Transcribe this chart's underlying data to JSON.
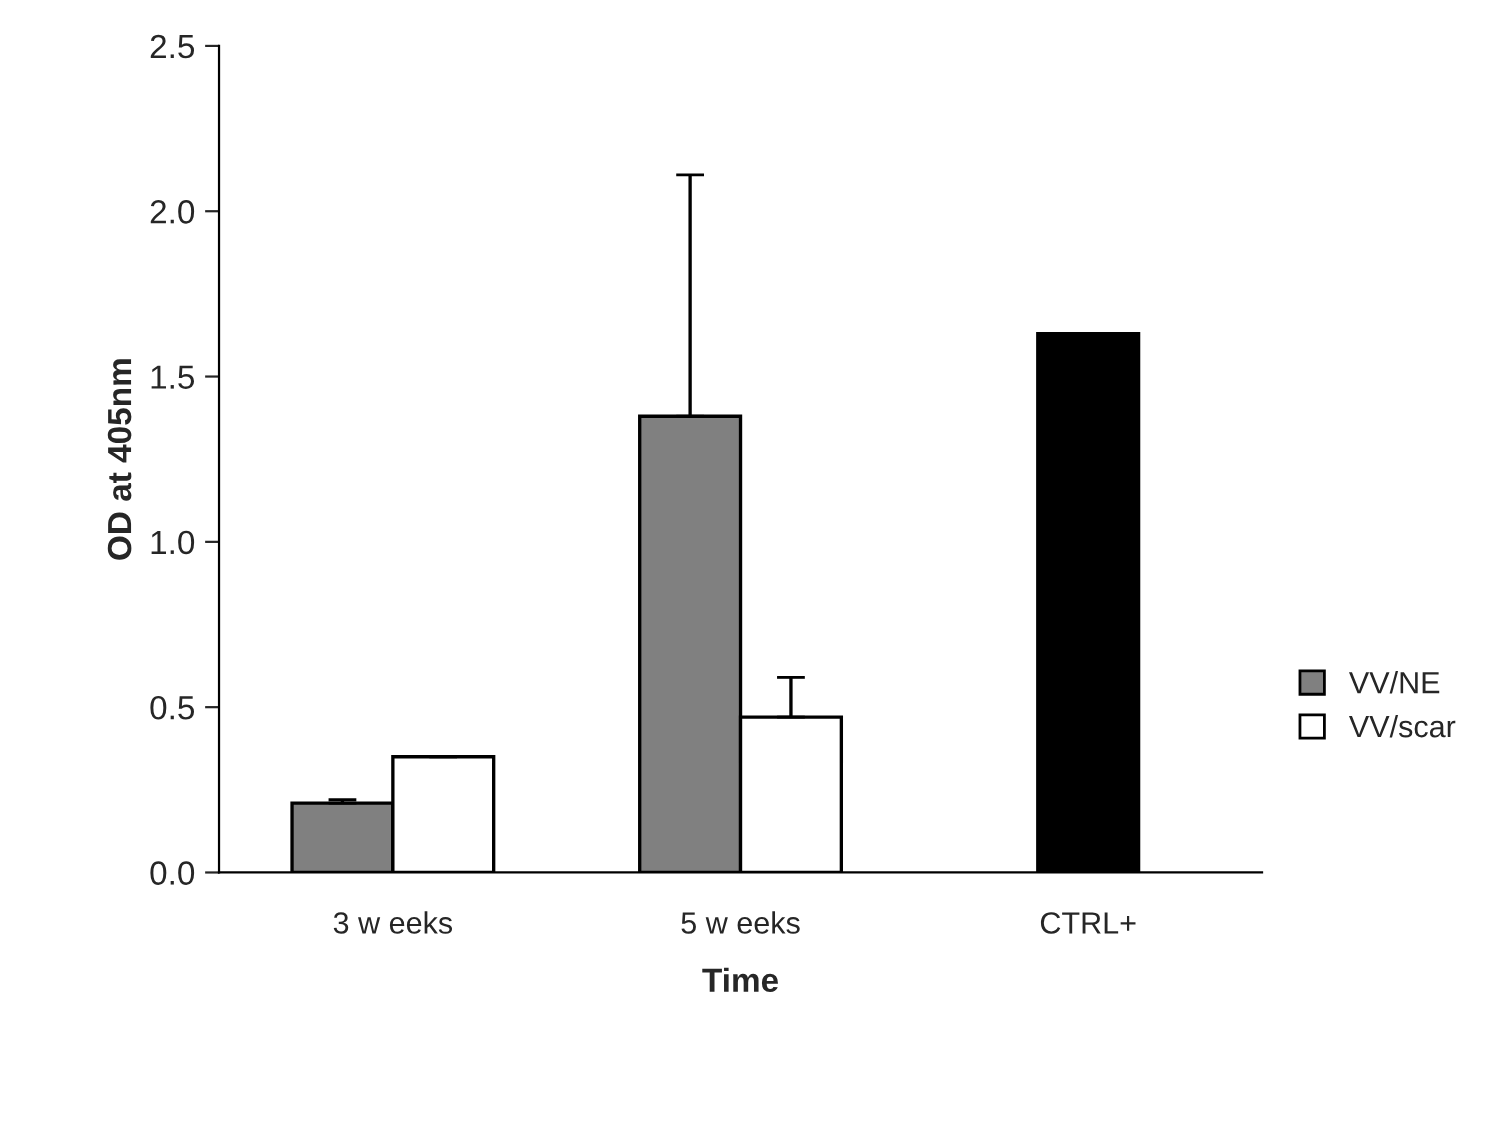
{
  "chart_data": {
    "type": "bar",
    "xlabel": "Time",
    "ylabel": "OD at 405nm",
    "categories": [
      "3 w eeks",
      "5 w eeks",
      "CTRL+"
    ],
    "series": [
      {
        "name": "VV/NE",
        "color": "#808080",
        "values": [
          0.21,
          1.38,
          null
        ],
        "errors": [
          0.01,
          0.73,
          null
        ]
      },
      {
        "name": "VV/scar",
        "color": "#ffffff",
        "values": [
          0.35,
          0.47,
          null
        ],
        "errors": [
          0,
          0.12,
          null
        ]
      },
      {
        "color": "#000000",
        "values": [
          null,
          null,
          1.63
        ]
      }
    ],
    "ylim": [
      0,
      2.5
    ],
    "yticks": [
      {
        "value": 0,
        "label": "0.0"
      },
      {
        "value": 0.5,
        "label": "0.5"
      },
      {
        "value": 1,
        "label": "1.0"
      },
      {
        "value": 1.5,
        "label": "1.5"
      },
      {
        "value": 2,
        "label": "2.0"
      },
      {
        "value": 2.5,
        "label": "2.5"
      }
    ],
    "grid": false,
    "legend": "right"
  }
}
